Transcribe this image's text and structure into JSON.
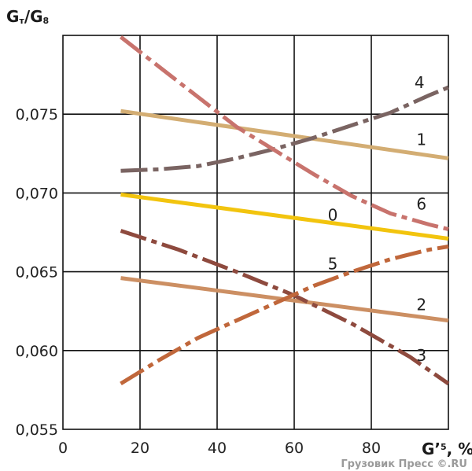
{
  "chart_data": {
    "type": "line",
    "ylabel": {
      "main": "G",
      "sub1": "т",
      "slash": "/G",
      "sub2": "8"
    },
    "xlabel": {
      "main": "G’",
      "sub": "5",
      "unit": ", %"
    },
    "xlim": [
      0,
      100
    ],
    "ylim": [
      0.055,
      0.08
    ],
    "x_ticks": [
      "0",
      "20",
      "40",
      "60",
      "80"
    ],
    "x_tick_values": [
      0,
      20,
      40,
      60,
      80
    ],
    "y_ticks": [
      "0,055",
      "0,060",
      "0,065",
      "0,070",
      "0,075"
    ],
    "y_tick_values": [
      0.055,
      0.06,
      0.065,
      0.07,
      0.075
    ],
    "grid": true,
    "series": [
      {
        "name": "0",
        "color": "#F2C40E",
        "dash": "solid",
        "x": [
          15,
          100
        ],
        "y": [
          0.0699,
          0.0671
        ]
      },
      {
        "name": "1",
        "color": "#D3AD73",
        "dash": "solid",
        "x": [
          15,
          100
        ],
        "y": [
          0.0752,
          0.0722
        ]
      },
      {
        "name": "2",
        "color": "#CC8F63",
        "dash": "solid",
        "x": [
          15,
          100
        ],
        "y": [
          0.0646,
          0.0619
        ]
      },
      {
        "name": "3",
        "color": "#8E4A3E",
        "dash": "dashdot",
        "x": [
          15,
          30,
          45,
          60,
          75,
          90,
          100
        ],
        "y": [
          0.0676,
          0.0664,
          0.065,
          0.0635,
          0.0617,
          0.0596,
          0.0579
        ]
      },
      {
        "name": "4",
        "color": "#7A6462",
        "dash": "dashdot",
        "x": [
          15,
          25,
          35,
          45,
          55,
          65,
          75,
          85,
          95,
          100
        ],
        "y": [
          0.0714,
          0.0715,
          0.0717,
          0.0722,
          0.0728,
          0.0735,
          0.0743,
          0.0751,
          0.0762,
          0.0767
        ]
      },
      {
        "name": "5",
        "color": "#C0673B",
        "dash": "dashdot",
        "x": [
          15,
          25,
          35,
          45,
          55,
          65,
          75,
          85,
          95,
          100
        ],
        "y": [
          0.0579,
          0.0594,
          0.0608,
          0.0619,
          0.063,
          0.0641,
          0.065,
          0.0658,
          0.0664,
          0.0666
        ]
      },
      {
        "name": "6",
        "color": "#C8736D",
        "dash": "dashdot",
        "x": [
          15,
          25,
          35,
          45,
          55,
          65,
          75,
          85,
          95,
          100
        ],
        "y": [
          0.0799,
          0.078,
          0.0761,
          0.0742,
          0.0727,
          0.0712,
          0.0698,
          0.0687,
          0.068,
          0.0677
        ]
      }
    ]
  },
  "series_labels": [
    {
      "series": "4",
      "text": "4",
      "x": 92.5,
      "y": 0.077
    },
    {
      "series": "1",
      "text": "1",
      "x": 93.0,
      "y": 0.0734
    },
    {
      "series": "6",
      "text": "6",
      "x": 93.0,
      "y": 0.0693
    },
    {
      "series": "0",
      "text": "0",
      "x": 70.0,
      "y": 0.0686
    },
    {
      "series": "5",
      "text": "5",
      "x": 70.0,
      "y": 0.0655
    },
    {
      "series": "2",
      "text": "2",
      "x": 93.0,
      "y": 0.0629
    },
    {
      "series": "3",
      "text": "3",
      "x": 93.0,
      "y": 0.0597
    }
  ],
  "watermark": "Грузовик Пресс ©.RU"
}
